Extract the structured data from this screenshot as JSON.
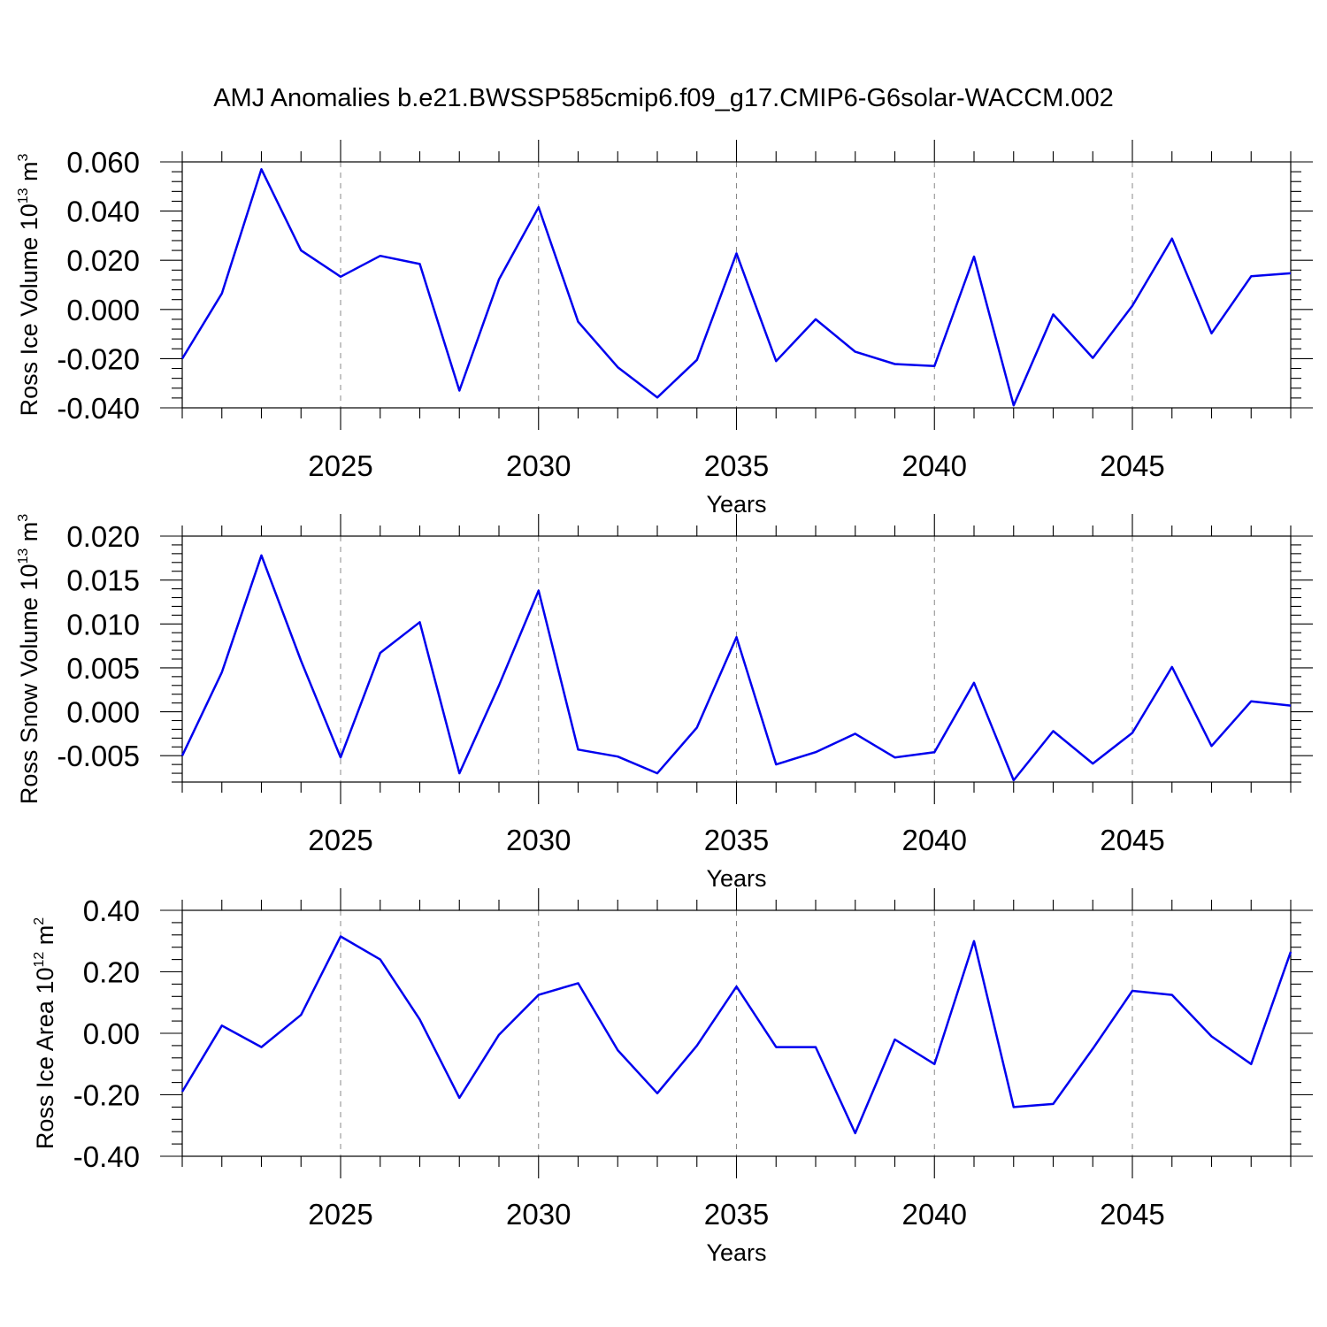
{
  "title": "AMJ Anomalies b.e21.BWSSP585cmip6.f09_g17.CMIP6-G6solar-WACCM.002",
  "line_color": "#0000ee",
  "chart_data": [
    {
      "type": "line",
      "xlabel": "Years",
      "ylabel": {
        "text": "Ross Ice Volume 10",
        "exp": "13",
        "unit": " m",
        "unit_exp": "3"
      },
      "xlim": [
        2021,
        2049
      ],
      "ylim": [
        -0.04,
        0.06
      ],
      "xticks": [
        2025,
        2030,
        2035,
        2040,
        2045
      ],
      "yticks": [
        -0.04,
        -0.02,
        0.0,
        0.02,
        0.04,
        0.06
      ],
      "ytick_labels": [
        "-0.040",
        "-0.020",
        "0.000",
        "0.020",
        "0.040",
        "0.060"
      ],
      "grid": "vertical-dashed",
      "x": [
        2021,
        2022,
        2023,
        2024,
        2025,
        2026,
        2027,
        2028,
        2029,
        2030,
        2031,
        2032,
        2033,
        2034,
        2035,
        2036,
        2037,
        2038,
        2039,
        2040,
        2041,
        2042,
        2043,
        2044,
        2045,
        2046,
        2047,
        2048,
        2049
      ],
      "y": [
        -0.02,
        0.0065,
        0.057,
        0.024,
        0.0133,
        0.0218,
        0.0185,
        -0.033,
        0.0122,
        0.0416,
        -0.005,
        -0.0235,
        -0.0358,
        -0.0205,
        0.0228,
        -0.021,
        -0.004,
        -0.0172,
        -0.0222,
        -0.023,
        0.0215,
        -0.039,
        -0.002,
        -0.0197,
        0.0015,
        0.0288,
        -0.0097,
        0.0135,
        0.0147
      ]
    },
    {
      "type": "line",
      "xlabel": "Years",
      "ylabel": {
        "text": "Ross Snow Volume 10",
        "exp": "13",
        "unit": " m",
        "unit_exp": "3"
      },
      "xlim": [
        2021,
        2049
      ],
      "ylim": [
        -0.008,
        0.02
      ],
      "xticks": [
        2025,
        2030,
        2035,
        2040,
        2045
      ],
      "yticks": [
        -0.005,
        0.0,
        0.005,
        0.01,
        0.015,
        0.02
      ],
      "ytick_labels": [
        "-0.005",
        "0.000",
        "0.005",
        "0.010",
        "0.015",
        "0.020"
      ],
      "grid": "vertical-dashed",
      "x": [
        2021,
        2022,
        2023,
        2024,
        2025,
        2026,
        2027,
        2028,
        2029,
        2030,
        2031,
        2032,
        2033,
        2034,
        2035,
        2036,
        2037,
        2038,
        2039,
        2040,
        2041,
        2042,
        2043,
        2044,
        2045,
        2046,
        2047,
        2048,
        2049
      ],
      "y": [
        -0.005,
        0.0045,
        0.0178,
        0.0058,
        -0.0052,
        0.0067,
        0.0102,
        -0.007,
        0.003,
        0.0138,
        -0.0043,
        -0.0051,
        -0.007,
        -0.0018,
        0.0085,
        -0.006,
        -0.0046,
        -0.0025,
        -0.0052,
        -0.0046,
        0.0033,
        -0.0078,
        -0.0022,
        -0.0059,
        -0.0024,
        0.0051,
        -0.0039,
        0.0012,
        0.0007
      ]
    },
    {
      "type": "line",
      "xlabel": "Years",
      "ylabel": {
        "text": "Ross Ice Area 10",
        "exp": "12",
        "unit": " m",
        "unit_exp": "2"
      },
      "xlim": [
        2021,
        2049
      ],
      "ylim": [
        -0.4,
        0.4
      ],
      "xticks": [
        2025,
        2030,
        2035,
        2040,
        2045
      ],
      "yticks": [
        -0.4,
        -0.2,
        0.0,
        0.2,
        0.4
      ],
      "ytick_labels": [
        "-0.40",
        "-0.20",
        "0.00",
        "0.20",
        "0.40"
      ],
      "grid": "vertical-dashed",
      "x": [
        2021,
        2022,
        2023,
        2024,
        2025,
        2026,
        2027,
        2028,
        2029,
        2030,
        2031,
        2032,
        2033,
        2034,
        2035,
        2036,
        2037,
        2038,
        2039,
        2040,
        2041,
        2042,
        2043,
        2044,
        2045,
        2046,
        2047,
        2048,
        2049
      ],
      "y": [
        -0.19,
        0.025,
        -0.045,
        0.06,
        0.315,
        0.24,
        0.045,
        -0.21,
        -0.005,
        0.125,
        0.163,
        -0.055,
        -0.195,
        -0.04,
        0.152,
        -0.045,
        -0.045,
        -0.325,
        -0.02,
        -0.1,
        0.3,
        -0.24,
        -0.23,
        -0.05,
        0.138,
        0.125,
        -0.01,
        -0.1,
        0.265
      ]
    }
  ]
}
